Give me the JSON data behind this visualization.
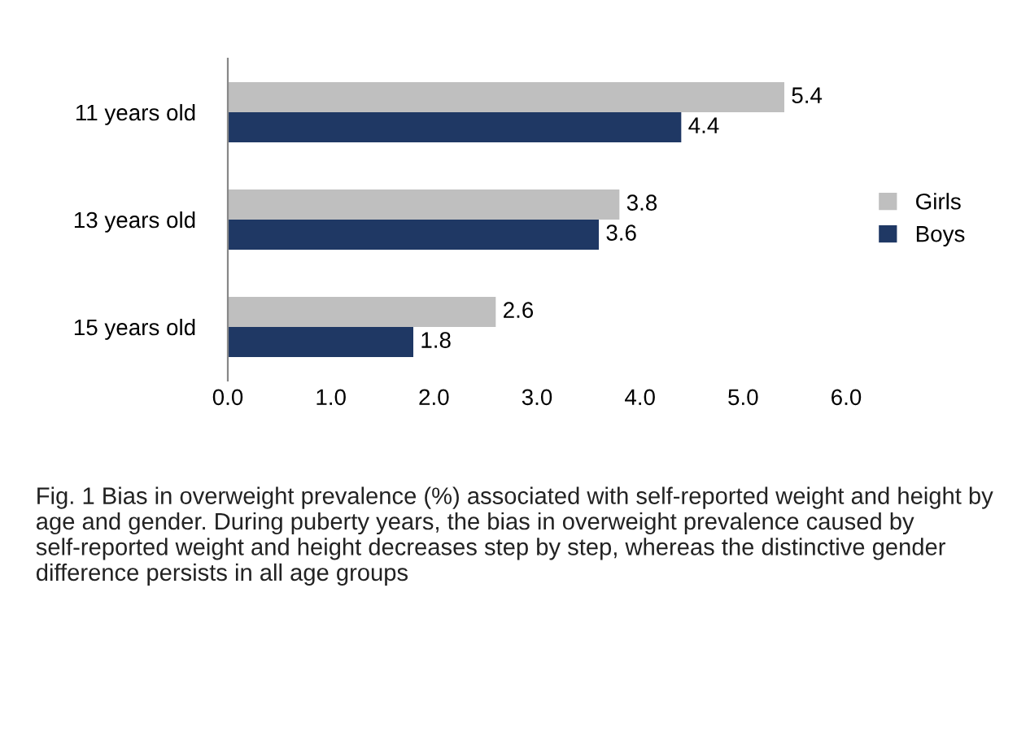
{
  "chart_data": {
    "type": "bar",
    "orientation": "horizontal",
    "categories": [
      "11 years old",
      "13 years old",
      "15 years old"
    ],
    "series": [
      {
        "name": "Girls",
        "color": "#bfbfbf",
        "values": [
          5.4,
          3.8,
          2.6
        ]
      },
      {
        "name": "Boys",
        "color": "#1f3864",
        "values": [
          4.4,
          3.6,
          1.8
        ]
      }
    ],
    "xlim": [
      0,
      6
    ],
    "xticks": [
      {
        "value": 0,
        "label": "0.0"
      },
      {
        "value": 1,
        "label": "1.0"
      },
      {
        "value": 2,
        "label": "2.0"
      },
      {
        "value": 3,
        "label": "3.0"
      },
      {
        "value": 4,
        "label": "4.0"
      },
      {
        "value": 5,
        "label": "5.0"
      },
      {
        "value": 6,
        "label": "6.0"
      }
    ],
    "data_labels": true,
    "legend": "right",
    "grid": false,
    "annotations": [
      "Fig. 1 Bias in overweight prevalence (%) associated with self-reported weight and height by age and gender. During puberty years, the bias in overweight prevalence caused by self-reported weight and height decreases step by step, whereas the distinctive gender difference persists in all age groups"
    ]
  }
}
